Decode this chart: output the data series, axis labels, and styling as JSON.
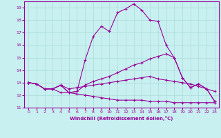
{
  "xlabel": "Windchill (Refroidissement éolien,°C)",
  "bg_color": "#c8f0f0",
  "line_color": "#990099",
  "grid_color": "#b0dede",
  "xlim": [
    -0.5,
    23.5
  ],
  "ylim": [
    11,
    19.5
  ],
  "xticks": [
    0,
    1,
    2,
    3,
    4,
    5,
    6,
    7,
    8,
    9,
    10,
    11,
    12,
    13,
    14,
    15,
    16,
    17,
    18,
    19,
    20,
    21,
    22,
    23
  ],
  "yticks": [
    11,
    12,
    13,
    14,
    15,
    16,
    17,
    18,
    19
  ],
  "lines": [
    {
      "x": [
        0,
        1,
        2,
        3,
        4,
        5,
        6,
        7,
        8,
        9,
        10,
        11,
        12,
        13,
        14,
        15,
        16,
        17,
        18,
        19,
        20,
        21,
        22,
        23
      ],
      "y": [
        13.0,
        12.9,
        12.5,
        12.5,
        12.8,
        12.2,
        12.3,
        14.8,
        16.7,
        17.5,
        17.1,
        18.6,
        18.9,
        19.3,
        18.8,
        18.0,
        17.9,
        16.0,
        15.0,
        13.4,
        12.6,
        12.9,
        12.5,
        11.5
      ]
    },
    {
      "x": [
        0,
        1,
        2,
        3,
        4,
        5,
        6,
        7,
        8,
        9,
        10,
        11,
        12,
        13,
        14,
        15,
        16,
        17,
        18,
        19,
        20,
        21,
        22,
        23
      ],
      "y": [
        13.0,
        12.9,
        12.5,
        12.5,
        12.8,
        12.2,
        12.3,
        12.8,
        13.1,
        13.3,
        13.5,
        13.8,
        14.1,
        14.4,
        14.6,
        14.9,
        15.1,
        15.3,
        15.0,
        13.4,
        12.6,
        12.9,
        12.5,
        11.5
      ]
    },
    {
      "x": [
        0,
        1,
        2,
        3,
        4,
        5,
        6,
        7,
        8,
        9,
        10,
        11,
        12,
        13,
        14,
        15,
        16,
        17,
        18,
        19,
        20,
        21,
        22,
        23
      ],
      "y": [
        13.0,
        12.9,
        12.5,
        12.5,
        12.8,
        12.5,
        12.6,
        12.7,
        12.8,
        12.9,
        13.0,
        13.1,
        13.2,
        13.3,
        13.4,
        13.5,
        13.3,
        13.2,
        13.1,
        13.0,
        12.9,
        12.7,
        12.5,
        12.3
      ]
    },
    {
      "x": [
        0,
        1,
        2,
        3,
        4,
        5,
        6,
        7,
        8,
        9,
        10,
        11,
        12,
        13,
        14,
        15,
        16,
        17,
        18,
        19,
        20,
        21,
        22,
        23
      ],
      "y": [
        13.0,
        12.9,
        12.5,
        12.5,
        12.2,
        12.2,
        12.1,
        12.0,
        11.9,
        11.8,
        11.7,
        11.6,
        11.6,
        11.6,
        11.6,
        11.5,
        11.5,
        11.5,
        11.4,
        11.4,
        11.4,
        11.4,
        11.4,
        11.4
      ]
    }
  ]
}
